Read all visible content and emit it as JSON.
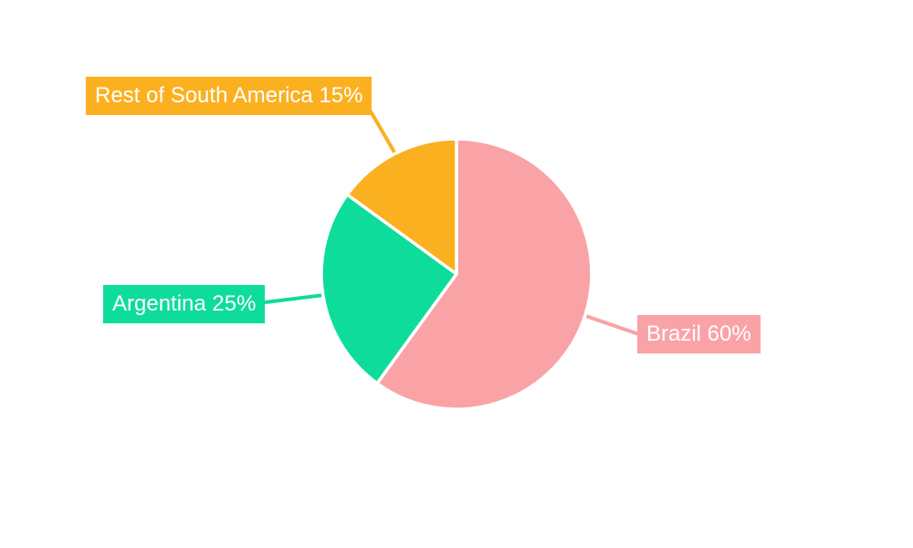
{
  "page": {
    "background_color": "#ffffff",
    "text_color": "#ffffff"
  },
  "chart_data": {
    "type": "pie",
    "title": "",
    "categories": [
      "Brazil",
      "Argentina",
      "Rest of South America"
    ],
    "values": [
      60,
      25,
      15
    ],
    "slices": [
      {
        "label": "Brazil",
        "value": 60,
        "percent_text": "60%",
        "callout_text": "Brazil 60%",
        "color": "#F9A3A6"
      },
      {
        "label": "Argentina",
        "value": 25,
        "percent_text": "25%",
        "callout_text": "Argentina 25%",
        "color": "#0EDC9B"
      },
      {
        "label": "Rest of South America",
        "value": 15,
        "percent_text": "15%",
        "callout_text": "Rest of South America 15%",
        "color": "#FBB020"
      }
    ],
    "legend_position": "none",
    "label_style": "callout-boxes-with-leader-lines",
    "start_angle_clockwise_from_top_deg": 0,
    "direction": "clockwise",
    "slice_gap_color": "#ffffff"
  }
}
